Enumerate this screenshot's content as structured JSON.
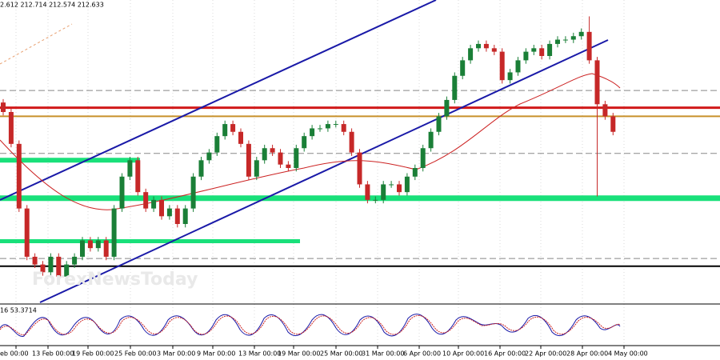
{
  "chart_data": {
    "type": "candlestick",
    "header": "2.612 212.714 212.574 212.633",
    "indicator_label": "16 53.3714",
    "ylim": [
      210.68,
      214.19
    ],
    "up_color": "#1a7f37",
    "down_color": "#c62828",
    "open": [
      213.0,
      212.89,
      212.52,
      211.77,
      211.21,
      211.12,
      211.03,
      211.21,
      210.98,
      211.12,
      211.21,
      211.4,
      211.31,
      211.4,
      211.21,
      211.77,
      212.14,
      212.33,
      211.96,
      211.77,
      211.87,
      211.68,
      211.77,
      211.59,
      211.77,
      212.14,
      212.33,
      212.42,
      212.61,
      212.75,
      212.66,
      212.52,
      212.14,
      212.33,
      212.47,
      212.42,
      212.28,
      212.24,
      212.47,
      212.61,
      212.7,
      212.7,
      212.75,
      212.75,
      212.66,
      212.42,
      212.05,
      211.87,
      211.87,
      212.05,
      212.05,
      211.96,
      212.14,
      212.24,
      212.47,
      212.66,
      212.84,
      213.03,
      213.31,
      213.49,
      213.63,
      213.68,
      213.63,
      213.59,
      213.26,
      213.35,
      213.49,
      213.59,
      213.63,
      213.54,
      213.68,
      213.73,
      213.73,
      213.77,
      213.82,
      213.49,
      212.98,
      212.84
    ],
    "high": [
      213.04,
      212.93,
      212.56,
      211.81,
      211.25,
      211.16,
      211.25,
      211.25,
      211.16,
      211.25,
      211.44,
      211.44,
      211.44,
      211.44,
      211.81,
      212.18,
      212.37,
      212.37,
      212.0,
      211.91,
      211.91,
      211.81,
      211.81,
      211.81,
      212.18,
      212.37,
      212.46,
      212.65,
      212.79,
      212.79,
      212.7,
      212.56,
      212.37,
      212.51,
      212.51,
      212.46,
      212.32,
      212.51,
      212.65,
      212.74,
      212.74,
      212.79,
      212.79,
      212.79,
      212.7,
      212.46,
      212.09,
      211.91,
      212.09,
      212.09,
      212.09,
      212.18,
      212.28,
      212.51,
      212.7,
      212.88,
      213.07,
      213.35,
      213.53,
      213.67,
      213.72,
      213.72,
      213.67,
      213.63,
      213.39,
      213.53,
      213.63,
      213.67,
      213.67,
      213.72,
      213.77,
      213.77,
      213.81,
      213.86,
      214.0,
      213.53,
      213.02,
      212.88
    ],
    "low": [
      212.85,
      212.48,
      211.73,
      211.17,
      211.08,
      210.99,
      210.99,
      210.94,
      210.94,
      211.08,
      211.17,
      211.27,
      211.27,
      211.17,
      211.17,
      211.73,
      212.1,
      211.92,
      211.73,
      211.73,
      211.64,
      211.64,
      211.55,
      211.55,
      211.73,
      212.1,
      212.29,
      212.38,
      212.57,
      212.62,
      212.48,
      212.1,
      212.1,
      212.29,
      212.38,
      212.24,
      212.2,
      212.2,
      212.43,
      212.57,
      212.66,
      212.66,
      212.71,
      212.62,
      212.38,
      212.01,
      211.83,
      211.83,
      211.83,
      212.01,
      211.92,
      211.92,
      212.1,
      212.2,
      212.43,
      212.62,
      212.8,
      212.99,
      213.27,
      213.45,
      213.59,
      213.59,
      213.55,
      213.22,
      213.22,
      213.31,
      213.45,
      213.55,
      213.5,
      213.5,
      213.64,
      213.69,
      213.69,
      213.73,
      213.45,
      211.91,
      212.8,
      212.62
    ],
    "close": [
      212.89,
      212.52,
      211.77,
      211.21,
      211.12,
      211.03,
      211.21,
      210.98,
      211.12,
      211.21,
      211.4,
      211.31,
      211.4,
      211.21,
      211.77,
      212.14,
      212.33,
      211.96,
      211.77,
      211.87,
      211.68,
      211.77,
      211.59,
      211.77,
      212.14,
      212.33,
      212.42,
      212.61,
      212.75,
      212.66,
      212.52,
      212.14,
      212.33,
      212.47,
      212.42,
      212.28,
      212.24,
      212.47,
      212.61,
      212.7,
      212.7,
      212.75,
      212.75,
      212.66,
      212.42,
      212.05,
      211.87,
      211.87,
      212.05,
      212.05,
      211.96,
      212.14,
      212.24,
      212.47,
      212.66,
      212.84,
      213.03,
      213.31,
      213.49,
      213.63,
      213.68,
      213.63,
      213.59,
      213.26,
      213.35,
      213.49,
      213.59,
      213.63,
      213.54,
      213.68,
      213.73,
      213.73,
      213.77,
      213.82,
      213.49,
      212.98,
      212.84,
      212.66
    ],
    "levels": [
      {
        "value": 212.94,
        "color": "#d11a1a"
      },
      {
        "value": 212.84,
        "color": "#c8902a"
      },
      {
        "value": 211.89,
        "color": "#19e07a"
      },
      {
        "value": 212.33,
        "color": "#19e07a"
      },
      {
        "value": 211.39,
        "color": "#19e07a"
      },
      {
        "value": 213.14,
        "color": "#888888"
      },
      {
        "value": 212.41,
        "color": "#888888"
      },
      {
        "value": 211.19,
        "color": "#888888"
      },
      {
        "value": 211.1,
        "color": "#000000"
      }
    ],
    "time_labels": [
      "eb 00:00",
      "13 Feb 00:00",
      "19 Feb 00:00",
      "25 Feb 00:00",
      "3 Mar 00:00",
      "9 Mar 00:00",
      "13 Mar 00:00",
      "19 Mar 00:00",
      "25 Mar 00:00",
      "31 Mar 00:00",
      "6 Apr 00:00",
      "10 Apr 00:00",
      "16 Apr 00:00",
      "22 Apr 00:00",
      "28 Apr 00:00",
      "4 May 00:00"
    ]
  }
}
